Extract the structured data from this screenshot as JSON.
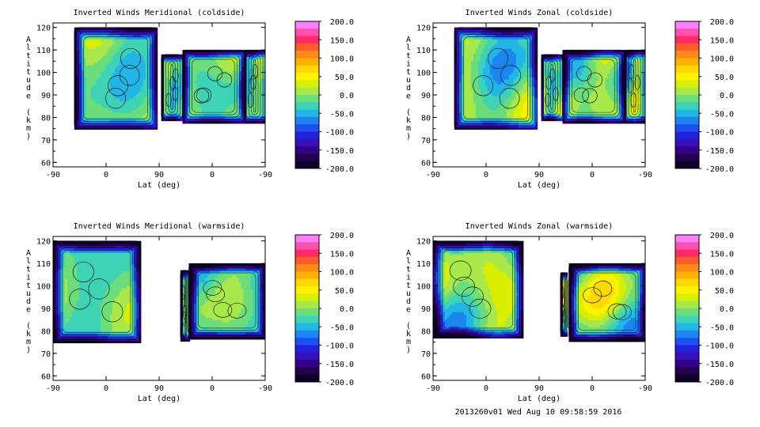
{
  "footer": "2013260v01 Wed Aug 10 09:58:59 2016",
  "colorbar": {
    "ticks": [
      "200.0",
      "150.0",
      "100.0",
      "50.0",
      "0.0",
      "-50.0",
      "-100.0",
      "-150.0",
      "-200.0"
    ],
    "colors": [
      "#ff80ff",
      "#ff4fb0",
      "#ff2a6a",
      "#ff5a2a",
      "#ff8a1a",
      "#ffb000",
      "#ffd800",
      "#fff200",
      "#d8f000",
      "#a8e84a",
      "#6ddc7a",
      "#3ed3b5",
      "#22b6e6",
      "#1c86f0",
      "#1c50f0",
      "#2222dd",
      "#3311bb",
      "#330088",
      "#22004f",
      "#0f0028"
    ]
  },
  "chart_data": [
    {
      "type": "heatmap",
      "title": "Inverted Winds Meridional (coldside)",
      "xlabel": "Lat (deg)",
      "ylabel": "Altitude (km)",
      "x_ticks": [
        "-90",
        "0",
        "90",
        "0",
        "-90"
      ],
      "y_ticks": [
        60,
        70,
        80,
        90,
        100,
        110,
        120
      ],
      "ylim": [
        58,
        122
      ],
      "zlim": [
        -200,
        200
      ],
      "value_range": [
        -60,
        30
      ]
    },
    {
      "type": "heatmap",
      "title": "Inverted Winds Zonal (coldside)",
      "xlabel": "Lat (deg)",
      "ylabel": "Altitude (km)",
      "x_ticks": [
        "-90",
        "0",
        "90",
        "0",
        "-90"
      ],
      "y_ticks": [
        60,
        70,
        80,
        90,
        100,
        110,
        120
      ],
      "ylim": [
        58,
        122
      ],
      "zlim": [
        -200,
        200
      ],
      "value_range": [
        -80,
        60
      ]
    },
    {
      "type": "heatmap",
      "title": "Inverted Winds Meridional (warmside)",
      "xlabel": "Lat (deg)",
      "ylabel": "Altitude (km)",
      "x_ticks": [
        "-90",
        "0",
        "90",
        "0",
        "-90"
      ],
      "y_ticks": [
        60,
        70,
        80,
        90,
        100,
        110,
        120
      ],
      "ylim": [
        58,
        122
      ],
      "zlim": [
        -200,
        200
      ],
      "value_range": [
        -60,
        30
      ]
    },
    {
      "type": "heatmap",
      "title": "Inverted Winds Zonal (warmside)",
      "xlabel": "Lat (deg)",
      "ylabel": "Altitude (km)",
      "x_ticks": [
        "-90",
        "0",
        "90",
        "0",
        "-90"
      ],
      "y_ticks": [
        60,
        70,
        80,
        90,
        100,
        110,
        120
      ],
      "ylim": [
        58,
        122
      ],
      "zlim": [
        -200,
        200
      ],
      "value_range": [
        -80,
        80
      ]
    }
  ]
}
